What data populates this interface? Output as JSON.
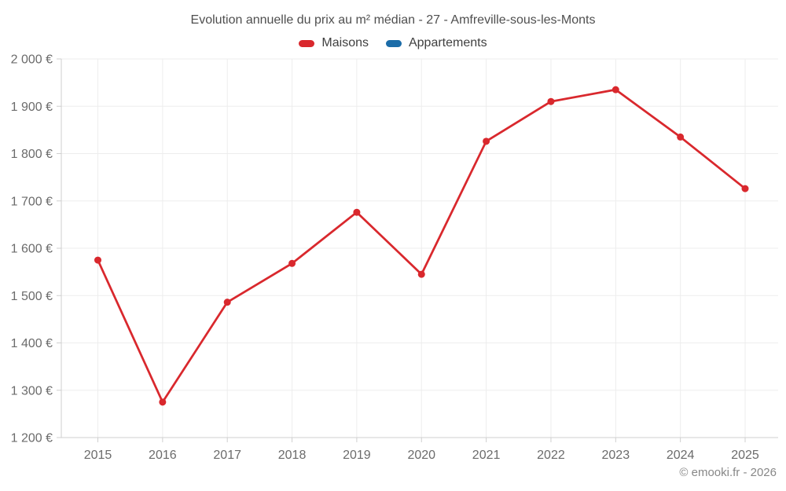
{
  "chart_data": {
    "type": "line",
    "title": "Evolution annuelle du prix au m² médian - 27 - Amfreville-sous-les-Monts",
    "categories": [
      "2015",
      "2016",
      "2017",
      "2018",
      "2019",
      "2020",
      "2021",
      "2022",
      "2023",
      "2024",
      "2025"
    ],
    "series": [
      {
        "name": "Maisons",
        "color": "#d9282d",
        "marker": "circle",
        "values": [
          1575,
          1275,
          1486,
          1568,
          1676,
          1545,
          1826,
          1910,
          1935,
          1835,
          1726
        ]
      },
      {
        "name": "Appartements",
        "color": "#1b6ca8",
        "marker": "circle",
        "values": []
      }
    ],
    "xlabel": "",
    "ylabel": "",
    "ylim": [
      1200,
      2000
    ],
    "ytick_step": 100,
    "ytick_labels": [
      "1 200 €",
      "1 300 €",
      "1 400 €",
      "1 500 €",
      "1 600 €",
      "1 700 €",
      "1 800 €",
      "1 900 €",
      "2 000 €"
    ],
    "grid": true,
    "legend_position": "top"
  },
  "footer": {
    "credit": "© emooki.fr - 2026"
  },
  "colors": {
    "grid": "#ededed",
    "axis": "#cfcfcf",
    "tick_label": "#6b6b6b",
    "title_text": "#4f4f4f",
    "legend_text": "#3f3f3f",
    "footer_text": "#878787",
    "background": "#ffffff"
  }
}
